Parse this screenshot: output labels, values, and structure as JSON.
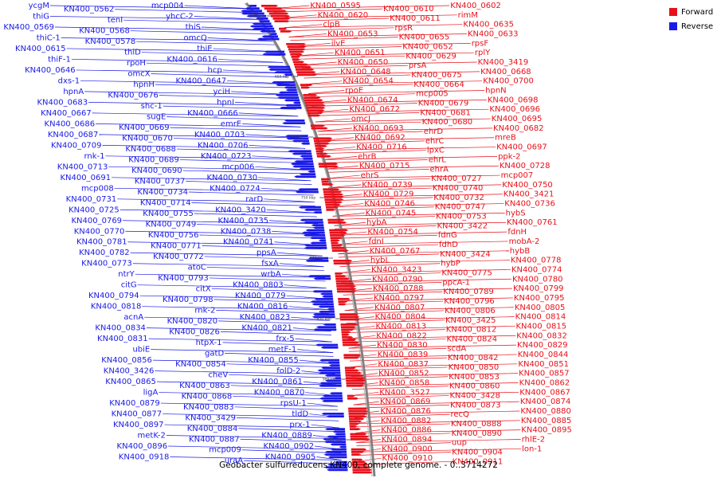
{
  "caption": "Geobacter sulfurreducens KN400, complete genome. - 0..3714272",
  "legend": [
    {
      "label": "Forward",
      "color": "#e8101a"
    },
    {
      "label": "Reverse",
      "color": "#1a1ae8"
    }
  ],
  "ticks": [
    "600 kbp",
    "650 kbp",
    "700 kbp",
    "750 kbp",
    "800 kbp",
    "850 kbp",
    "900 kbp",
    "950 kbp"
  ],
  "forward_labels": [
    "KN400_0595",
    "KN400_0610",
    "KN400_0602",
    "KN400_0620",
    "KN400_0611",
    "rimM",
    "clpB",
    "rpsR",
    "KN400_0635",
    "KN400_0653",
    "KN400_0655",
    "KN400_0633",
    "ilvE",
    "KN400_0652",
    "rpsF",
    "KN400_0651",
    "KN400_0629",
    "rplY",
    "KN400_0650",
    "prsA",
    "KN400_3419",
    "KN400_0648",
    "KN400_0675",
    "KN400_0668",
    "KN400_0654",
    "KN400_0664",
    "KN400_0700",
    "rpoE",
    "mcp005",
    "hpnN",
    "KN400_0674",
    "KN400_0679",
    "KN400_0698",
    "KN400_0672",
    "KN400_0681",
    "KN400_0696",
    "omcJ",
    "KN400_0680",
    "KN400_0695",
    "KN400_0693",
    "ehrD",
    "KN400_0682",
    "KN400_0692",
    "ehrC",
    "mreB",
    "KN400_0716",
    "lpxC",
    "KN400_0697",
    "ehrB",
    "ehrL",
    "ppk-2",
    "KN400_0715",
    "ehrA",
    "KN400_0728",
    "ehrS",
    "KN400_0727",
    "mcp007",
    "KN400_0739",
    "KN400_0740",
    "KN400_0750",
    "KN400_0729",
    "KN400_0732",
    "KN400_3421",
    "KN400_0746",
    "KN400_0747",
    "KN400_0736",
    "KN400_0745",
    "KN400_0753",
    "hybS",
    "hybA",
    "KN400_3422",
    "KN400_0761",
    "KN400_0754",
    "fdnG",
    "fdnH",
    "fdnI",
    "fdhD",
    "mobA-2",
    "KN400_0767",
    "KN400_3424",
    "hybB",
    "hybL",
    "hybP",
    "KN400_0778",
    "KN400_3423",
    "KN400_0775",
    "KN400_0774",
    "KN400_0790",
    "ppcA-1",
    "KN400_0780",
    "KN400_0788",
    "KN400_0789",
    "KN400_0799",
    "KN400_0797",
    "KN400_0796",
    "KN400_0795",
    "KN400_0807",
    "KN400_0806",
    "KN400_0805",
    "KN400_0804",
    "KN400_3425",
    "KN400_0814",
    "KN400_0813",
    "KN400_0812",
    "KN400_0815",
    "KN400_0822",
    "KN400_0824",
    "KN400_0832",
    "KN400_0830",
    "scdA",
    "KN400_0829",
    "KN400_0839",
    "KN400_0842",
    "KN400_0844",
    "KN400_0837",
    "KN400_0850",
    "KN400_0851",
    "KN400_0852",
    "KN400_0853",
    "KN400_0857",
    "KN400_0858",
    "KN400_0860",
    "KN400_0862",
    "KN400_3527",
    "KN400_3428",
    "KN400_0867",
    "KN400_0869",
    "KN400_0873",
    "KN400_0874",
    "KN400_0876",
    "recQ",
    "KN400_0880",
    "KN400_0882",
    "KN400_0888",
    "KN400_0885",
    "KN400_0886",
    "KN400_0890",
    "KN400_0895",
    "KN400_0894",
    "uup",
    "rhlE-2",
    "KN400_0900",
    "KN400_0904",
    "lon-1",
    "KN400_0910",
    "KN400_0911"
  ],
  "reverse_labels": [
    "mcp004",
    "KN400_0562",
    "ycgM",
    "yhcC-2",
    "tenI",
    "thiG",
    "thiS",
    "KN400_0568",
    "KN400_0569",
    "omcQ",
    "KN400_0578",
    "thiC-1",
    "thiE",
    "thiD",
    "KN400_0615",
    "KN400_0616",
    "rpoH",
    "thiF-1",
    "hcp",
    "omcX",
    "KN400_0646",
    "KN400_0647",
    "hpnH",
    "dxs-1",
    "yciH",
    "KN400_0676",
    "hpnA",
    "hpnI",
    "shc-1",
    "KN400_0683",
    "KN400_0666",
    "sugE",
    "KN400_0667",
    "emrE",
    "KN400_0669",
    "KN400_0686",
    "KN400_0703",
    "KN400_0670",
    "KN400_0687",
    "KN400_0706",
    "KN400_0688",
    "KN400_0709",
    "KN400_0723",
    "KN400_0689",
    "rnk-1",
    "mcp006",
    "KN400_0690",
    "KN400_0713",
    "KN400_0730",
    "KN400_0737",
    "KN400_0691",
    "KN400_0724",
    "KN400_0734",
    "mcp008",
    "rarD",
    "KN400_0714",
    "KN400_0731",
    "KN400_3420",
    "KN400_0755",
    "KN400_0725",
    "KN400_0735",
    "KN400_0749",
    "KN400_0769",
    "KN400_0738",
    "KN400_0756",
    "KN400_0770",
    "KN400_0741",
    "KN400_0771",
    "KN400_0781",
    "ppsA",
    "KN400_0772",
    "KN400_0782",
    "fsxA",
    "atoC",
    "KN400_0773",
    "wrbA",
    "KN400_0793",
    "ntrY",
    "KN400_0803",
    "citX",
    "citG",
    "KN400_0779",
    "KN400_0798",
    "KN400_0794",
    "KN400_0816",
    "rnk-2",
    "KN400_0818",
    "KN400_0823",
    "KN400_0820",
    "acnA",
    "KN400_0821",
    "KN400_0826",
    "KN400_0834",
    "frx-5",
    "htpX-1",
    "KN400_0831",
    "metF-1",
    "gatD",
    "ubiE",
    "KN400_0855",
    "KN400_0854",
    "KN400_0856",
    "folD-2",
    "cheV",
    "KN400_3426",
    "KN400_0861",
    "KN400_0863",
    "KN400_0865",
    "KN400_0870",
    "KN400_0868",
    "ligA",
    "rpsU-1",
    "KN400_0883",
    "KN400_0879",
    "tldD",
    "KN400_3429",
    "KN400_0877",
    "prx-1",
    "KN400_0884",
    "KN400_0897",
    "KN400_0889",
    "KN400_0887",
    "metK-2",
    "KN400_0902",
    "mcp009",
    "KN400_0896",
    "KN400_0905",
    "uraA",
    "KN400_0918"
  ]
}
